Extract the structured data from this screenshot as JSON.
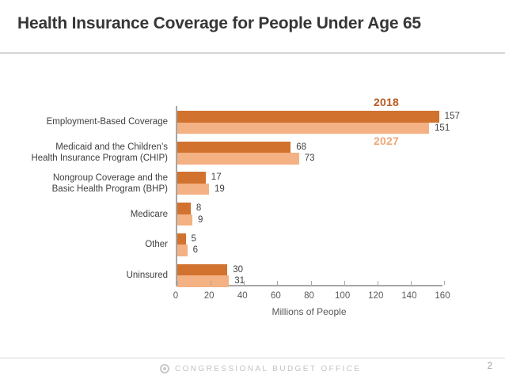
{
  "slide": {
    "title": "Health Insurance Coverage for People Under Age 65",
    "footer_text": "CONGRESSIONAL BUDGET OFFICE",
    "page_number": "2"
  },
  "colors": {
    "series_2018": "#d1722f",
    "series_2027": "#f4b183",
    "legend_2018_text": "#b95a21",
    "legend_2027_text": "#efa877",
    "axis": "#a6a6a6",
    "value_text": "#3f3f3f",
    "axis_text": "#595959"
  },
  "chart_data": {
    "type": "bar",
    "orientation": "horizontal",
    "title": "Health Insurance Coverage for People Under Age 65",
    "categories": [
      [
        "Employment-Based Coverage"
      ],
      [
        "Medicaid and the Children’s",
        "Health Insurance Program (CHIP)"
      ],
      [
        "Nongroup Coverage and the",
        "Basic Health Program (BHP)"
      ],
      [
        "Medicare"
      ],
      [
        "Other"
      ],
      [
        "Uninsured"
      ]
    ],
    "series": [
      {
        "name": "2018",
        "values": [
          157,
          68,
          17,
          8,
          5,
          30
        ]
      },
      {
        "name": "2027",
        "values": [
          151,
          73,
          19,
          9,
          6,
          31
        ]
      }
    ],
    "xlabel": "Millions of People",
    "xlim": [
      0,
      160
    ],
    "xticks": [
      0,
      20,
      40,
      60,
      80,
      100,
      120,
      140,
      160
    ],
    "grid": false,
    "legend_position": "inline-right-of-top-bars",
    "value_labels": "outside-end"
  }
}
